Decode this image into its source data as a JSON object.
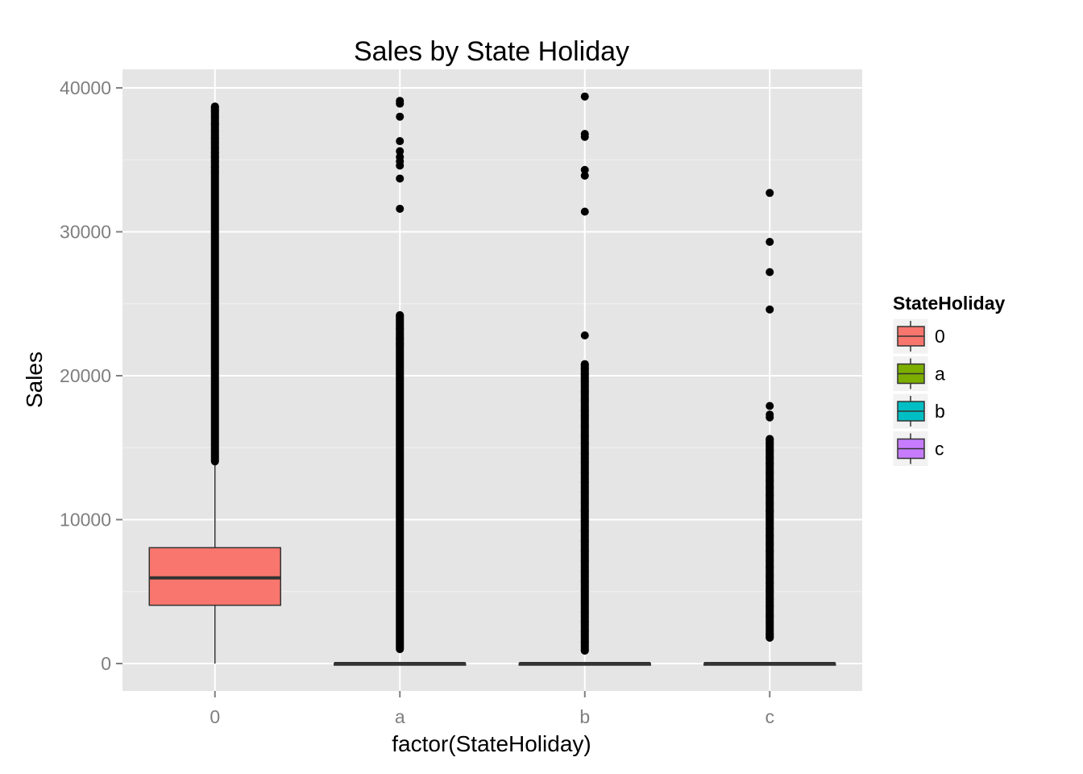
{
  "chart_data": {
    "type": "boxplot",
    "title": "Sales by State Holiday",
    "xlabel": "factor(StateHoliday)",
    "ylabel": "Sales",
    "ylim": [
      -1900,
      41000
    ],
    "yticks": [
      0,
      10000,
      20000,
      30000,
      40000
    ],
    "grid": true,
    "legend": {
      "title": "StateHoliday",
      "position": "right"
    },
    "categories": [
      "0",
      "a",
      "b",
      "c"
    ],
    "series": [
      {
        "name": "0",
        "color": "#F8766D",
        "min": 0,
        "q1": 4050,
        "median": 5950,
        "q3": 8050,
        "whisker_high": 14050,
        "outlier_range": [
          14050,
          38700
        ],
        "outliers": [
          38700,
          38400,
          38000,
          37500,
          37000,
          36500,
          36200,
          35800,
          35500,
          35200,
          34900,
          34500,
          34200
        ]
      },
      {
        "name": "a",
        "color": "#7CAE00",
        "min": 0,
        "q1": 0,
        "median": 0,
        "q3": 0,
        "whisker_high": 0,
        "outlier_range": [
          1000,
          24200
        ],
        "outliers": [
          39100,
          38900,
          38000,
          36300,
          35600,
          35200,
          34900,
          34600,
          33700,
          31600,
          24200,
          23300,
          22600,
          22200
        ]
      },
      {
        "name": "b",
        "color": "#00BFC4",
        "min": 0,
        "q1": 0,
        "median": 0,
        "q3": 0,
        "whisker_high": 0,
        "outlier_range": [
          900,
          20800
        ],
        "outliers": [
          39400,
          36800,
          36600,
          34300,
          33900,
          31400,
          22800,
          20800,
          20500,
          20100,
          19600,
          18900,
          18300,
          17600,
          17200,
          16500,
          15800,
          15300,
          14600,
          14000,
          13300,
          12600,
          11900,
          11200,
          10600,
          9900,
          9200,
          8500,
          7800,
          7100,
          6400,
          5700,
          5000,
          4300,
          3600,
          2900,
          2200,
          1500,
          900
        ]
      },
      {
        "name": "c",
        "color": "#C77CFF",
        "min": 0,
        "q1": 0,
        "median": 0,
        "q3": 0,
        "whisker_high": 0,
        "outlier_range": [
          1800,
          15600
        ],
        "outliers": [
          32700,
          29300,
          27200,
          24600,
          17900,
          17300,
          17100,
          15600,
          15300,
          14800,
          14300,
          13900,
          13300,
          12700,
          12200,
          11700,
          11100,
          10600,
          10000,
          9400,
          8900,
          8300,
          7800,
          7200,
          6700,
          6100,
          5600,
          5000,
          4500,
          4000,
          3300,
          2000,
          1800
        ]
      }
    ]
  }
}
